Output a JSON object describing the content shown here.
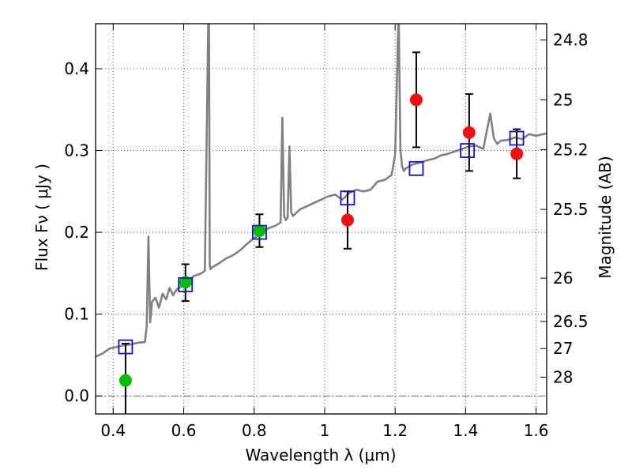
{
  "chart_data": {
    "type": "scatter",
    "xlabel": "Wavelength  λ (μm)",
    "ylabel": "Flux  Fν  ( μJy )",
    "ylabel_right": "Magnitude (AB)",
    "xlim": [
      0.35,
      1.63
    ],
    "ylim": [
      -0.022,
      0.455
    ],
    "x_ticks": [
      {
        "value": 0.4,
        "label": "0.4"
      },
      {
        "value": 0.6,
        "label": "0.6"
      },
      {
        "value": 0.8,
        "label": "0.8"
      },
      {
        "value": 1.0,
        "label": "1"
      },
      {
        "value": 1.2,
        "label": "1.2"
      },
      {
        "value": 1.4,
        "label": "1.4"
      },
      {
        "value": 1.6,
        "label": "1.6"
      }
    ],
    "y_ticks": [
      {
        "value": 0.0,
        "label": "0.0"
      },
      {
        "value": 0.1,
        "label": "0.1"
      },
      {
        "value": 0.2,
        "label": "0.2"
      },
      {
        "value": 0.3,
        "label": "0.3"
      },
      {
        "value": 0.4,
        "label": "0.4"
      }
    ],
    "right_ticks": [
      {
        "label": "24.8",
        "flux": 0.435
      },
      {
        "label": "25",
        "flux": 0.362
      },
      {
        "label": "25.2",
        "flux": 0.301
      },
      {
        "label": "25.5",
        "flux": 0.228
      },
      {
        "label": "26",
        "flux": 0.144
      },
      {
        "label": "26.5",
        "flux": 0.091
      },
      {
        "label": "27",
        "flux": 0.058
      },
      {
        "label": "28",
        "flux": 0.023
      }
    ],
    "grid": true,
    "reference_line": {
      "y": 0.0,
      "style": "dash-dot",
      "color": "#777777"
    },
    "colors": {
      "model": "#808080",
      "detection": "#00bb00",
      "measurement": "#ee1111",
      "model_box": "#1111cc",
      "errorbar": "#000000"
    },
    "series": [
      {
        "kind": "model_spectrum",
        "x": [
          0.35,
          0.37,
          0.39,
          0.41,
          0.43,
          0.45,
          0.47,
          0.49,
          0.495,
          0.5,
          0.505,
          0.51,
          0.52,
          0.53,
          0.54,
          0.55,
          0.56,
          0.57,
          0.575,
          0.58,
          0.59,
          0.6,
          0.61,
          0.62,
          0.63,
          0.64,
          0.65,
          0.66,
          0.67,
          0.672,
          0.674,
          0.676,
          0.68,
          0.7,
          0.72,
          0.74,
          0.76,
          0.78,
          0.8,
          0.82,
          0.84,
          0.86,
          0.875,
          0.88,
          0.885,
          0.89,
          0.895,
          0.9,
          0.905,
          0.91,
          0.93,
          0.95,
          0.97,
          0.99,
          1.01,
          1.03,
          1.05,
          1.07,
          1.09,
          1.11,
          1.13,
          1.15,
          1.17,
          1.19,
          1.2,
          1.21,
          1.215,
          1.22,
          1.225,
          1.23,
          1.25,
          1.27,
          1.29,
          1.31,
          1.33,
          1.35,
          1.37,
          1.39,
          1.41,
          1.43,
          1.45,
          1.47,
          1.48,
          1.49,
          1.5,
          1.52,
          1.54,
          1.56,
          1.58,
          1.6,
          1.63
        ],
        "y": [
          0.048,
          0.052,
          0.058,
          0.06,
          0.062,
          0.063,
          0.065,
          0.066,
          0.085,
          0.195,
          0.09,
          0.115,
          0.12,
          0.108,
          0.125,
          0.118,
          0.132,
          0.123,
          0.127,
          0.13,
          0.133,
          0.136,
          0.142,
          0.143,
          0.147,
          0.148,
          0.15,
          0.153,
          0.47,
          0.45,
          0.16,
          0.155,
          0.157,
          0.162,
          0.168,
          0.172,
          0.178,
          0.186,
          0.193,
          0.198,
          0.205,
          0.208,
          0.212,
          0.34,
          0.22,
          0.215,
          0.218,
          0.305,
          0.225,
          0.22,
          0.228,
          0.232,
          0.236,
          0.24,
          0.244,
          0.246,
          0.24,
          0.248,
          0.252,
          0.25,
          0.252,
          0.262,
          0.264,
          0.27,
          0.295,
          0.47,
          0.3,
          0.28,
          0.275,
          0.278,
          0.283,
          0.285,
          0.288,
          0.29,
          0.294,
          0.296,
          0.299,
          0.302,
          0.305,
          0.306,
          0.302,
          0.345,
          0.315,
          0.308,
          0.312,
          0.313,
          0.316,
          0.314,
          0.32,
          0.318,
          0.321
        ]
      },
      {
        "kind": "detection",
        "x": [
          0.435,
          0.605,
          0.815
        ],
        "y": [
          0.019,
          0.139,
          0.202
        ],
        "err_low": [
          0.125,
          0.023,
          0.02
        ],
        "err_high": [
          0.045,
          0.022,
          0.02
        ]
      },
      {
        "kind": "measurement",
        "x": [
          1.065,
          1.26,
          1.41,
          1.545
        ],
        "y": [
          0.215,
          0.362,
          0.322,
          0.296
        ],
        "err_low": [
          0.035,
          0.058,
          0.047,
          0.03
        ],
        "err_high": [
          0.035,
          0.058,
          0.047,
          0.03
        ]
      },
      {
        "kind": "model_box",
        "x": [
          0.435,
          0.605,
          0.815,
          1.065,
          1.26,
          1.405,
          1.545
        ],
        "y": [
          0.06,
          0.136,
          0.2,
          0.242,
          0.278,
          0.3,
          0.315
        ]
      }
    ]
  }
}
